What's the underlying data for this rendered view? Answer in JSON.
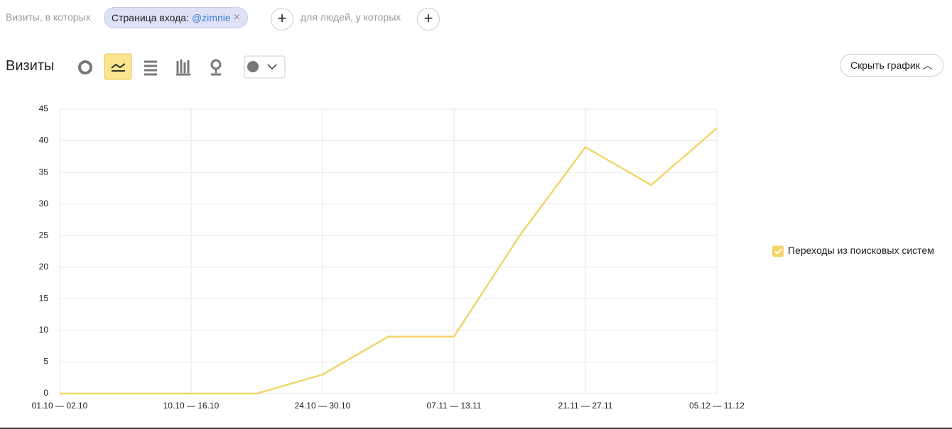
{
  "filter_bar": {
    "prefix": "Визиты, в которых",
    "chip_label": "Страница входа:",
    "chip_value": "@zimnie",
    "connector": "для людей, у которых"
  },
  "toolbar": {
    "title": "Визиты",
    "hide_button": "Скрыть график"
  },
  "chart_data": {
    "type": "line",
    "categories": [
      "01.10 — 02.10",
      null,
      "10.10 — 16.10",
      null,
      "24.10 — 30.10",
      null,
      "07.11 — 13.11",
      null,
      "21.11 — 27.11",
      null,
      "05.12 — 11.12"
    ],
    "series": [
      {
        "name": "Переходы из поисковых систем",
        "color": "#f2d46a",
        "values": [
          0,
          0,
          0,
          0,
          3,
          9,
          9,
          25,
          39,
          33,
          42
        ]
      }
    ],
    "ylim": [
      0,
      45
    ],
    "yticks": [
      0,
      5,
      10,
      15,
      20,
      25,
      30,
      35,
      40,
      45
    ],
    "grid": true,
    "legend": "right"
  }
}
